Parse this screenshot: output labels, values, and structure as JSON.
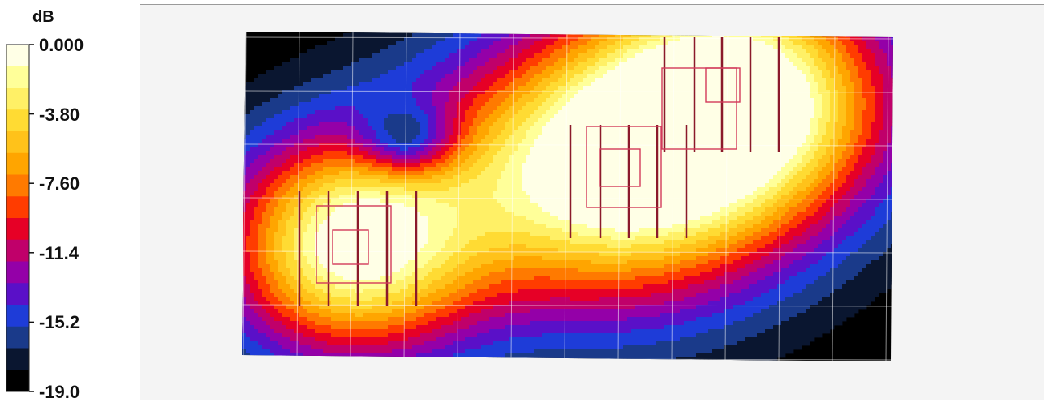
{
  "chart_data": {
    "type": "heatmap",
    "title": "",
    "colorbar": {
      "unit": "dB",
      "range": [
        -19.0,
        0.0
      ],
      "tick_labels": [
        "0.000",
        "-3.80",
        "-7.60",
        "-11.4",
        "-15.2",
        "-19.0"
      ],
      "tick_values": [
        0.0,
        -3.8,
        -7.6,
        -11.4,
        -15.2,
        -19.0
      ],
      "levels": 15,
      "colors": [
        "#ffffe6",
        "#ffff99",
        "#fff066",
        "#ffdb33",
        "#ffc21a",
        "#ffa500",
        "#ff7a00",
        "#ff3c00",
        "#e60026",
        "#c0006a",
        "#9400a8",
        "#5a10c8",
        "#1e3cd8",
        "#1a3a8a",
        "#0a1630",
        "#000000"
      ]
    },
    "grid": true,
    "sources": [
      {
        "name": "",
        "peak_db": 0.0
      },
      {
        "name": "",
        "peak_db": 0.0
      },
      {
        "name": "",
        "peak_db": 0.0
      }
    ]
  }
}
